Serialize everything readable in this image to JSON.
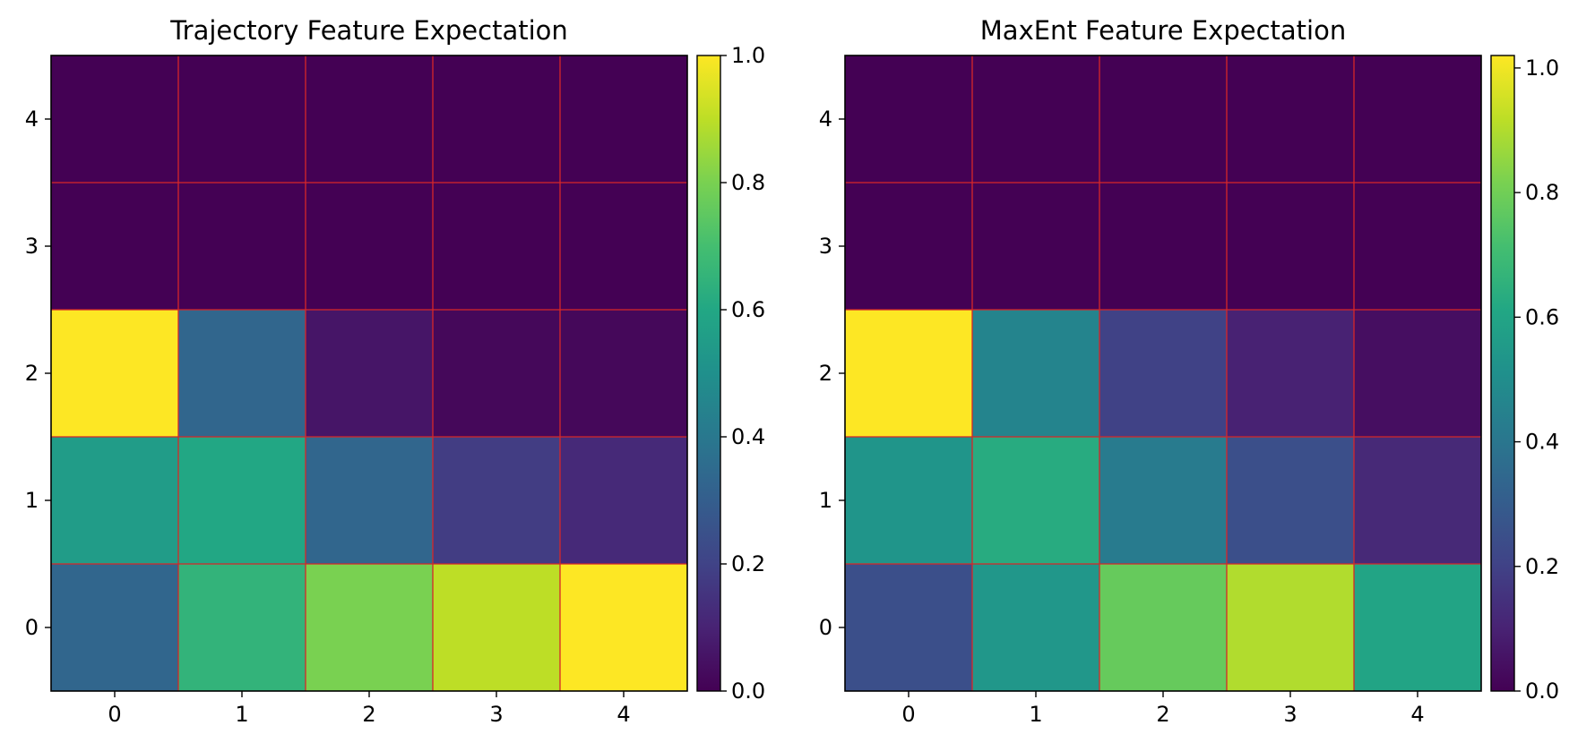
{
  "chart_data": [
    {
      "type": "heatmap",
      "title": "Trajectory Feature Expectation",
      "x_ticks": [
        "0",
        "1",
        "2",
        "3",
        "4"
      ],
      "y_ticks": [
        "0",
        "1",
        "2",
        "3",
        "4"
      ],
      "rows_y": [
        4,
        3,
        2,
        1,
        0
      ],
      "values": [
        [
          0.0,
          0.0,
          0.0,
          0.0,
          0.0
        ],
        [
          0.0,
          0.0,
          0.0,
          0.0,
          0.0
        ],
        [
          1.0,
          0.33,
          0.06,
          0.02,
          0.02
        ],
        [
          0.55,
          0.6,
          0.33,
          0.18,
          0.12
        ],
        [
          0.33,
          0.65,
          0.8,
          0.9,
          1.0
        ]
      ],
      "colorbar": {
        "min": 0.0,
        "max": 1.0,
        "ticks": [
          "0.0",
          "0.2",
          "0.4",
          "0.6",
          "0.8",
          "1.0"
        ]
      },
      "colormap": "viridis",
      "grid_color": "#d62728"
    },
    {
      "type": "heatmap",
      "title": "MaxEnt Feature Expectation",
      "x_ticks": [
        "0",
        "1",
        "2",
        "3",
        "4"
      ],
      "y_ticks": [
        "0",
        "1",
        "2",
        "3",
        "4"
      ],
      "rows_y": [
        4,
        3,
        2,
        1,
        0
      ],
      "values": [
        [
          0.0,
          0.0,
          0.0,
          0.0,
          0.0
        ],
        [
          0.0,
          0.0,
          0.0,
          0.0,
          0.0
        ],
        [
          1.02,
          0.46,
          0.2,
          0.1,
          0.04
        ],
        [
          0.53,
          0.63,
          0.42,
          0.25,
          0.12
        ],
        [
          0.25,
          0.54,
          0.78,
          0.9,
          0.6
        ]
      ],
      "colorbar": {
        "min": 0.0,
        "max": 1.02,
        "ticks": [
          "0.0",
          "0.2",
          "0.4",
          "0.6",
          "0.8",
          "1.0"
        ]
      },
      "colormap": "viridis",
      "grid_color": "#d62728"
    }
  ]
}
